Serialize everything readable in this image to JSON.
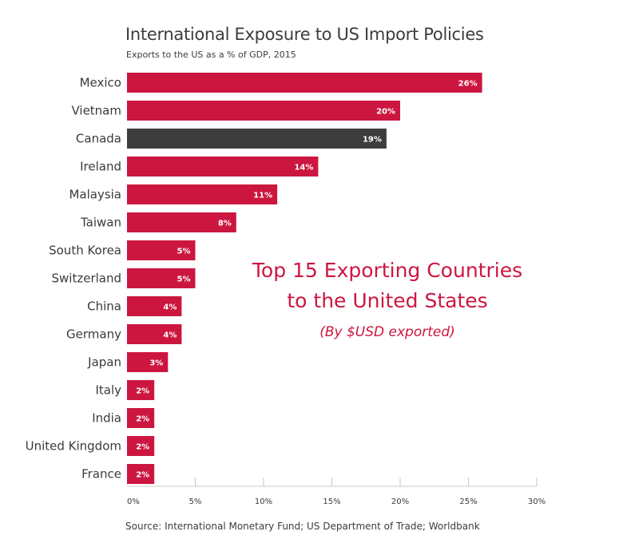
{
  "chart_data": {
    "type": "bar",
    "orientation": "horizontal",
    "title": "International Exposure to US Import Policies",
    "subtitle": "Exports to the US as a % of GDP, 2015",
    "categories": [
      "Mexico",
      "Vietnam",
      "Canada",
      "Ireland",
      "Malaysia",
      "Taiwan",
      "South Korea",
      "Switzerland",
      "China",
      "Germany",
      "Japan",
      "Italy",
      "India",
      "United Kingdom",
      "France"
    ],
    "values": [
      26,
      20,
      19,
      14,
      11,
      8,
      5,
      5,
      4,
      4,
      3,
      2,
      2,
      2,
      2
    ],
    "data_labels": [
      "26%",
      "20%",
      "19%",
      "14%",
      "11%",
      "8%",
      "5%",
      "5%",
      "4%",
      "4%",
      "3%",
      "2%",
      "2%",
      "2%",
      "2%"
    ],
    "highlight_category": "Canada",
    "xlim": [
      0,
      30
    ],
    "xticks": [
      0,
      5,
      10,
      15,
      20,
      25,
      30
    ],
    "xtick_labels": [
      "0%",
      "5%",
      "10%",
      "15%",
      "20%",
      "25%",
      "30%"
    ],
    "grid": false,
    "colors": {
      "bar": "#cc1640",
      "highlight": "#3d3d3d",
      "annotation": "#cc1640"
    },
    "annotation": {
      "line1": "Top 15 Exporting Countries",
      "line2": "to the United States",
      "note": "(By $USD exported)"
    },
    "source": "Source: International Monetary Fund; US Department of Trade; Worldbank"
  }
}
